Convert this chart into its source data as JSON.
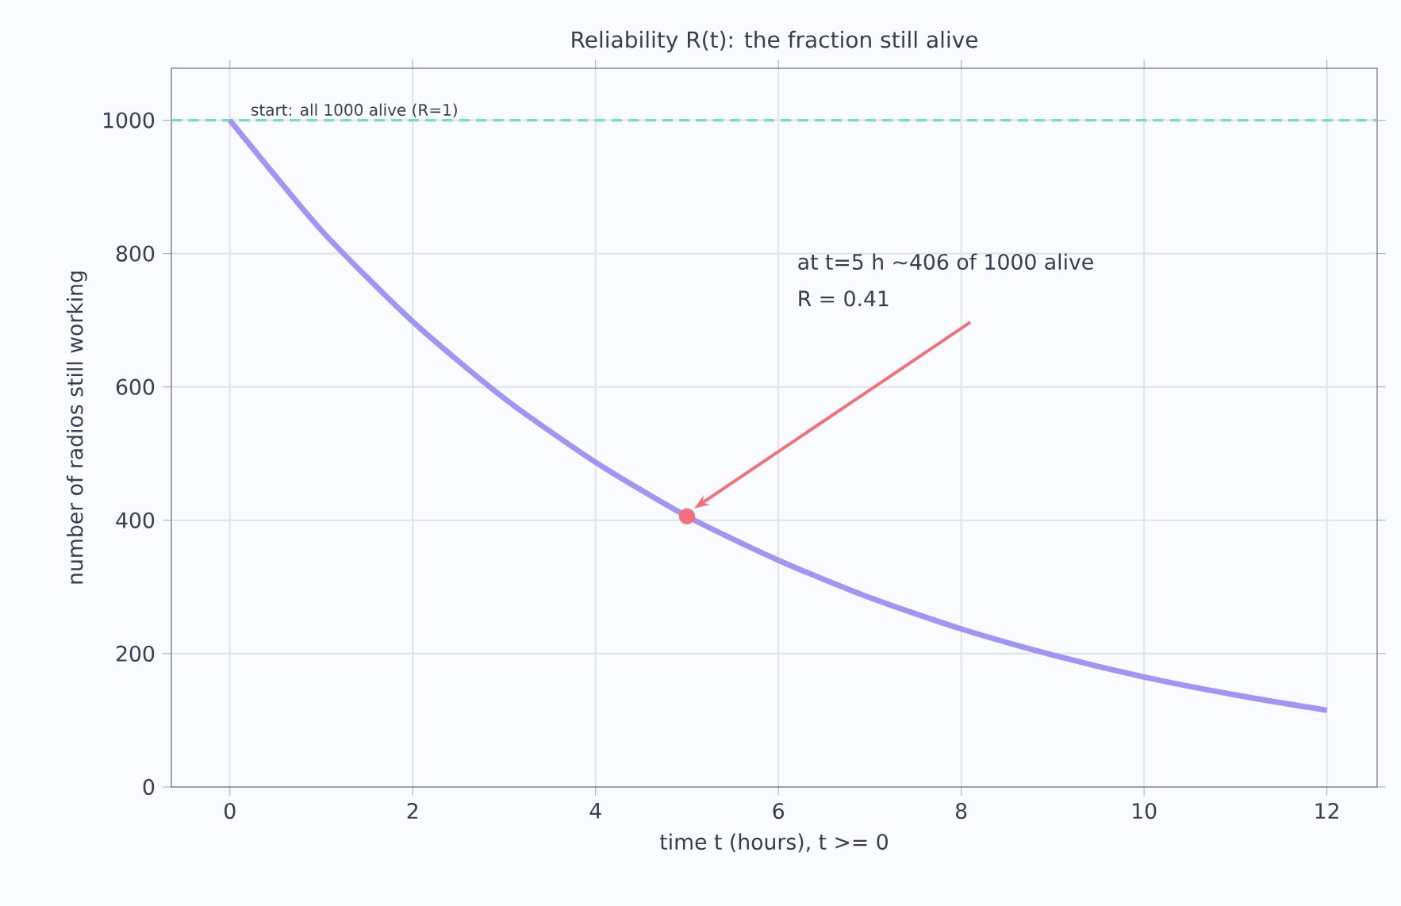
{
  "chart_data": {
    "type": "line",
    "title": "Reliability R(t): the fraction still alive",
    "xlabel": "time t (hours), t >= 0",
    "ylabel": "number of radios still working",
    "x": [
      0,
      1,
      2,
      3,
      4,
      5,
      6,
      7,
      8,
      9,
      10,
      11,
      12
    ],
    "series": [
      {
        "color": "#a393f5",
        "values": [
          1000,
          835,
          698,
          583,
          487,
          406,
          340,
          284,
          237,
          198,
          165,
          138,
          115
        ]
      },
      {
        "type": "scatter",
        "color": "#f4707e",
        "x": [
          5
        ],
        "values": [
          406
        ]
      }
    ],
    "xlim": [
      -0.64,
      12.55
    ],
    "ylim": [
      0,
      1078
    ],
    "xticks": [
      0,
      2,
      4,
      6,
      8,
      10,
      12
    ],
    "yticks": [
      0,
      200,
      400,
      600,
      800,
      1000
    ],
    "grid": true,
    "ref_lines": [
      {
        "axis": "y",
        "value": 1000,
        "label": "start: all 1000 alive (R=1)",
        "color": "#6fe0c0",
        "line_style": "dashed"
      }
    ],
    "annotations": [
      "at t=5 h ~406 of 1000 alive",
      "R = 0.41"
    ]
  }
}
